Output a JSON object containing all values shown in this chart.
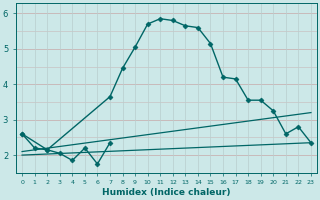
{
  "xlabel": "Humidex (Indice chaleur)",
  "ylabel": "",
  "xlim": [
    -0.5,
    23.5
  ],
  "ylim": [
    1.5,
    6.3
  ],
  "bg_color": "#cce8e8",
  "line_color": "#006666",
  "grid_color_h": "#c8b8b8",
  "grid_color_v": "#b8cece",
  "x_ticks": [
    0,
    1,
    2,
    3,
    4,
    5,
    6,
    7,
    8,
    9,
    10,
    11,
    12,
    13,
    14,
    15,
    16,
    17,
    18,
    19,
    20,
    21,
    22,
    23
  ],
  "y_ticks": [
    2,
    3,
    4,
    5,
    6
  ],
  "series": [
    {
      "x": [
        0,
        1,
        2,
        3,
        4,
        5,
        6,
        7
      ],
      "y": [
        2.6,
        2.2,
        2.15,
        2.05,
        1.85,
        2.2,
        1.75,
        2.35
      ],
      "marker": "D",
      "markersize": 2.5,
      "linewidth": 1.0
    },
    {
      "x": [
        0,
        2,
        7,
        8,
        9,
        10,
        11,
        12,
        13,
        14,
        15,
        16,
        17,
        18,
        19,
        20,
        21,
        22,
        23
      ],
      "y": [
        2.6,
        2.15,
        3.65,
        4.45,
        5.05,
        5.7,
        5.85,
        5.8,
        5.65,
        5.6,
        5.15,
        4.2,
        4.15,
        3.55,
        3.55,
        3.25,
        2.6,
        2.8,
        2.35
      ],
      "marker": "D",
      "markersize": 2.5,
      "linewidth": 1.0
    },
    {
      "x": [
        0,
        23
      ],
      "y": [
        2.1,
        3.2
      ],
      "marker": null,
      "markersize": 0,
      "linewidth": 0.9
    },
    {
      "x": [
        0,
        23
      ],
      "y": [
        2.0,
        2.35
      ],
      "marker": null,
      "markersize": 0,
      "linewidth": 0.9
    }
  ]
}
